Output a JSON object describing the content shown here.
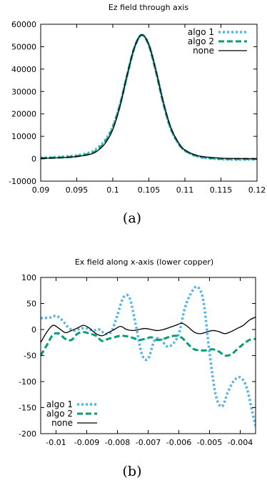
{
  "chart_data": [
    {
      "type": "line",
      "title": "Ez field through axis",
      "caption": "(a)",
      "xlabel": "",
      "ylabel": "",
      "xlim": [
        0.09,
        0.12
      ],
      "ylim": [
        -10000,
        60000
      ],
      "xticks": [
        "0.09",
        "0.095",
        "0.1",
        "0.105",
        "0.11",
        "0.115",
        "0.12"
      ],
      "yticks": [
        "-10000",
        "0",
        "10000",
        "20000",
        "30000",
        "40000",
        "50000",
        "60000"
      ],
      "legend_position": "top-right",
      "series": [
        {
          "name": "algo 1",
          "color": "#56b4e9",
          "dash": "dotted",
          "x": [
            0.09,
            0.093,
            0.095,
            0.097,
            0.098,
            0.099,
            0.1,
            0.101,
            0.102,
            0.103,
            0.104,
            0.105,
            0.106,
            0.107,
            0.108,
            0.109,
            0.11,
            0.112,
            0.115,
            0.117,
            0.12
          ],
          "y": [
            400,
            900,
            1500,
            3000,
            5200,
            8600,
            14500,
            24300,
            37400,
            49500,
            55200,
            50800,
            39000,
            25000,
            13600,
            7300,
            3600,
            800,
            -200,
            -400,
            -300
          ]
        },
        {
          "name": "algo 2",
          "color": "#009e73",
          "dash": "dashed",
          "x": [
            0.09,
            0.093,
            0.095,
            0.097,
            0.098,
            0.099,
            0.1,
            0.101,
            0.102,
            0.103,
            0.104,
            0.105,
            0.106,
            0.107,
            0.108,
            0.109,
            0.11,
            0.112,
            0.115,
            0.117,
            0.12
          ],
          "y": [
            200,
            600,
            1100,
            2400,
            4300,
            7800,
            13800,
            24000,
            37500,
            49700,
            55200,
            50600,
            38600,
            24800,
            14000,
            7500,
            3700,
            1000,
            0,
            -100,
            -100
          ]
        },
        {
          "name": "none",
          "color": "#000000",
          "dash": "solid",
          "x": [
            0.09,
            0.093,
            0.095,
            0.097,
            0.098,
            0.099,
            0.1,
            0.101,
            0.102,
            0.103,
            0.104,
            0.105,
            0.106,
            0.107,
            0.108,
            0.109,
            0.11,
            0.112,
            0.115,
            0.117,
            0.12
          ],
          "y": [
            200,
            500,
            1000,
            2100,
            3800,
            7100,
            13000,
            23500,
            37300,
            49600,
            55300,
            50900,
            39200,
            25400,
            14300,
            7700,
            3900,
            1200,
            300,
            100,
            0
          ]
        }
      ]
    },
    {
      "type": "line",
      "title": "Ex field along x-axis (lower copper)",
      "caption": "(b)",
      "xlabel": "",
      "ylabel": "",
      "xlim": [
        -0.0105,
        -0.0035
      ],
      "ylim": [
        -200,
        100
      ],
      "xticks": [
        "-0.01",
        "-0.009",
        "-0.008",
        "-0.007",
        "-0.006",
        "-0.005",
        "-0.004"
      ],
      "yticks": [
        "-200",
        "-150",
        "-100",
        "-50",
        "0",
        "50",
        "100"
      ],
      "legend_position": "bottom-left",
      "series": [
        {
          "name": "algo 1",
          "color": "#56b4e9",
          "dash": "dotted",
          "x": [
            -0.0105,
            -0.0102,
            -0.01,
            -0.0098,
            -0.0096,
            -0.0094,
            -0.0092,
            -0.009,
            -0.0088,
            -0.0086,
            -0.0084,
            -0.0082,
            -0.008,
            -0.0078,
            -0.0076,
            -0.0074,
            -0.0072,
            -0.007,
            -0.0068,
            -0.0066,
            -0.0064,
            -0.0062,
            -0.006,
            -0.0058,
            -0.0056,
            -0.0054,
            -0.0052,
            -0.005,
            -0.0048,
            -0.0046,
            -0.0044,
            -0.0042,
            -0.004,
            -0.0038,
            -0.0036,
            -0.0035
          ],
          "y": [
            22,
            23,
            26,
            18,
            4,
            -2,
            2,
            2,
            -2,
            0,
            -8,
            -4,
            28,
            62,
            60,
            8,
            -48,
            -56,
            -22,
            -18,
            -32,
            -28,
            -8,
            42,
            70,
            82,
            55,
            -45,
            -125,
            -148,
            -120,
            -98,
            -92,
            -110,
            -160,
            -185
          ]
        },
        {
          "name": "algo 2",
          "color": "#009e73",
          "dash": "dashed",
          "x": [
            -0.0105,
            -0.0103,
            -0.0101,
            -0.0099,
            -0.0097,
            -0.0095,
            -0.0093,
            -0.0091,
            -0.0089,
            -0.0087,
            -0.0085,
            -0.0083,
            -0.0081,
            -0.0079,
            -0.0077,
            -0.0075,
            -0.0073,
            -0.0071,
            -0.0069,
            -0.0067,
            -0.0065,
            -0.0063,
            -0.0061,
            -0.0059,
            -0.0057,
            -0.0055,
            -0.0053,
            -0.0051,
            -0.0049,
            -0.0047,
            -0.0045,
            -0.0043,
            -0.0041,
            -0.0039,
            -0.0037,
            -0.0035
          ],
          "y": [
            -50,
            -30,
            -10,
            -8,
            -18,
            -20,
            -8,
            -5,
            -8,
            -12,
            -22,
            -18,
            -15,
            -12,
            -13,
            -16,
            -20,
            -18,
            -15,
            -20,
            -18,
            -14,
            -12,
            -16,
            -28,
            -38,
            -40,
            -40,
            -38,
            -42,
            -50,
            -48,
            -38,
            -28,
            -20,
            -18
          ]
        },
        {
          "name": "none",
          "color": "#000000",
          "dash": "solid",
          "x": [
            -0.0105,
            -0.0103,
            -0.0101,
            -0.0099,
            -0.0097,
            -0.0095,
            -0.0093,
            -0.0091,
            -0.0089,
            -0.0087,
            -0.0085,
            -0.0083,
            -0.0081,
            -0.0079,
            -0.0077,
            -0.0075,
            -0.0073,
            -0.0071,
            -0.0069,
            -0.0067,
            -0.0065,
            -0.0063,
            -0.0061,
            -0.0059,
            -0.0057,
            -0.0055,
            -0.0053,
            -0.0051,
            -0.0049,
            -0.0047,
            -0.0045,
            -0.0043,
            -0.0041,
            -0.0039,
            -0.0037,
            -0.0035
          ],
          "y": [
            -25,
            -5,
            8,
            2,
            -6,
            -2,
            3,
            8,
            2,
            -8,
            -12,
            -6,
            0,
            6,
            0,
            -2,
            0,
            2,
            0,
            -2,
            0,
            4,
            8,
            12,
            5,
            -5,
            -8,
            -5,
            -2,
            -4,
            -8,
            -4,
            2,
            8,
            18,
            24
          ]
        }
      ]
    }
  ]
}
